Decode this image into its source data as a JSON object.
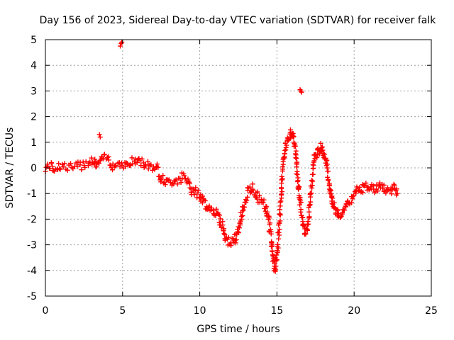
{
  "chart_data": {
    "type": "scatter",
    "title": "Day 156 of 2023, Sidereal Day-to-day VTEC variation (SDTVAR) for receiver falk",
    "xlabel": "GPS time / hours",
    "ylabel": "SDTVAR / TECUs",
    "xlim": [
      0,
      25
    ],
    "ylim": [
      -5,
      5
    ],
    "x_ticks": [
      "0",
      "5",
      "10",
      "15",
      "20",
      "25"
    ],
    "y_ticks": [
      "-5",
      "-4",
      "-3",
      "-2",
      "-1",
      "0",
      "1",
      "2",
      "3",
      "4",
      "5"
    ],
    "grid": true,
    "marker": "+",
    "color": "#ff0000",
    "series": [
      {
        "name": "SDTVAR",
        "trace": [
          [
            0.0,
            0.0
          ],
          [
            0.3,
            0.1
          ],
          [
            0.6,
            0.0
          ],
          [
            1.0,
            0.1
          ],
          [
            1.5,
            0.0
          ],
          [
            2.0,
            0.0
          ],
          [
            2.5,
            0.2
          ],
          [
            3.0,
            0.3
          ],
          [
            3.3,
            0.1
          ],
          [
            3.6,
            0.3
          ],
          [
            4.0,
            0.4
          ],
          [
            4.4,
            0.1
          ],
          [
            4.8,
            0.2
          ],
          [
            5.2,
            0.1
          ],
          [
            5.6,
            0.2
          ],
          [
            6.0,
            0.3
          ],
          [
            6.4,
            0.2
          ],
          [
            6.8,
            0.1
          ],
          [
            7.2,
            0.0
          ],
          [
            7.5,
            -0.4
          ],
          [
            7.9,
            -0.6
          ],
          [
            8.3,
            -0.5
          ],
          [
            8.7,
            -0.4
          ],
          [
            9.0,
            -0.4
          ],
          [
            9.3,
            -0.6
          ],
          [
            9.6,
            -0.9
          ],
          [
            9.9,
            -1.0
          ],
          [
            10.2,
            -1.3
          ],
          [
            10.5,
            -1.5
          ],
          [
            10.8,
            -1.6
          ],
          [
            11.1,
            -1.8
          ],
          [
            11.4,
            -2.1
          ],
          [
            11.7,
            -2.8
          ],
          [
            12.0,
            -2.9
          ],
          [
            12.3,
            -2.8
          ],
          [
            12.5,
            -2.5
          ],
          [
            12.8,
            -1.6
          ],
          [
            13.1,
            -1.0
          ],
          [
            13.4,
            -0.8
          ],
          [
            13.7,
            -1.1
          ],
          [
            14.0,
            -1.3
          ],
          [
            14.3,
            -1.6
          ],
          [
            14.5,
            -2.1
          ],
          [
            14.7,
            -3.2
          ],
          [
            14.85,
            -4.0
          ],
          [
            15.0,
            -3.4
          ],
          [
            15.2,
            -1.8
          ],
          [
            15.4,
            0.3
          ],
          [
            15.6,
            0.9
          ],
          [
            15.8,
            1.2
          ],
          [
            16.0,
            1.5
          ],
          [
            16.2,
            0.7
          ],
          [
            16.4,
            -0.8
          ],
          [
            16.6,
            -1.8
          ],
          [
            16.8,
            -2.6
          ],
          [
            17.0,
            -2.4
          ],
          [
            17.2,
            -1.0
          ],
          [
            17.4,
            0.4
          ],
          [
            17.6,
            0.5
          ],
          [
            17.8,
            0.8
          ],
          [
            18.0,
            0.6
          ],
          [
            18.2,
            0.2
          ],
          [
            18.4,
            -0.8
          ],
          [
            18.6,
            -1.3
          ],
          [
            18.8,
            -1.7
          ],
          [
            19.0,
            -1.9
          ],
          [
            19.3,
            -1.7
          ],
          [
            19.6,
            -1.3
          ],
          [
            19.9,
            -1.2
          ],
          [
            20.2,
            -0.9
          ],
          [
            20.5,
            -0.8
          ],
          [
            20.8,
            -0.7
          ],
          [
            21.1,
            -0.8
          ],
          [
            21.4,
            -0.8
          ],
          [
            21.7,
            -0.7
          ],
          [
            22.0,
            -0.8
          ],
          [
            22.3,
            -0.9
          ],
          [
            22.6,
            -0.8
          ],
          [
            22.8,
            -1.0
          ]
        ],
        "outliers": [
          [
            3.5,
            1.3
          ],
          [
            3.55,
            1.2
          ],
          [
            4.85,
            4.75
          ],
          [
            4.9,
            4.85
          ],
          [
            4.95,
            4.9
          ],
          [
            16.5,
            3.05
          ],
          [
            16.55,
            3.0
          ],
          [
            16.6,
            2.95
          ]
        ]
      }
    ]
  }
}
